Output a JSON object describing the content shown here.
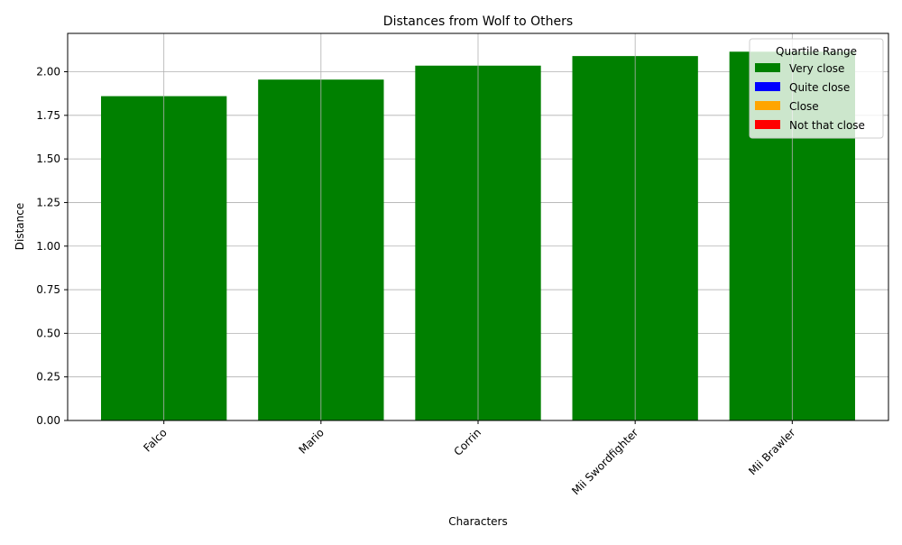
{
  "chart_data": {
    "type": "bar",
    "title": "Distances from Wolf to Others",
    "xlabel": "Characters",
    "ylabel": "Distance",
    "categories": [
      "Falco",
      "Mario",
      "Corrin",
      "Mii Swordfighter",
      "Mii Brawler"
    ],
    "values": [
      1.86,
      1.955,
      2.035,
      2.09,
      2.115
    ],
    "bar_colors": [
      "#008000",
      "#008000",
      "#008000",
      "#008000",
      "#008000"
    ],
    "ylim": [
      0,
      2.22
    ],
    "yticks": [
      "0.00",
      "0.25",
      "0.50",
      "0.75",
      "1.00",
      "1.25",
      "1.50",
      "1.75",
      "2.00"
    ],
    "grid": true,
    "legend": {
      "title": "Quartile Range",
      "position": "top-right",
      "entries": [
        {
          "label": "Very close",
          "color": "#008000"
        },
        {
          "label": "Quite close",
          "color": "#0000ff"
        },
        {
          "label": "Close",
          "color": "#ffa500"
        },
        {
          "label": "Not that close",
          "color": "#ff0000"
        }
      ]
    }
  }
}
